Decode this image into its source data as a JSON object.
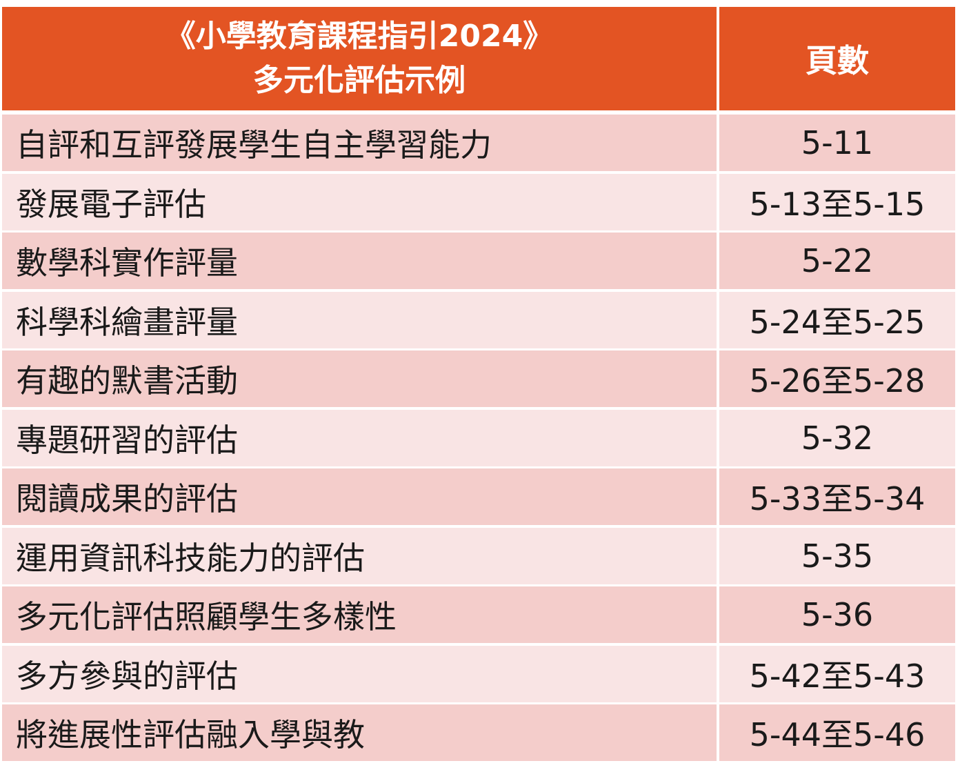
{
  "header": {
    "title_lines": [
      "《小學教育課程指引2024》",
      "多元化評估示例"
    ],
    "pages_heading": "頁數"
  },
  "table": {
    "rows": [
      [
        "自評和互評發展學生自主學習能力",
        "5-11"
      ],
      [
        "發展電子評估",
        "5-13至5-15"
      ],
      [
        "數學科實作評量",
        "5-22"
      ],
      [
        "科學科繪畫評量",
        "5-24至5-25"
      ],
      [
        "有趣的默書活動",
        "5-26至5-28"
      ],
      [
        "專題研習的評估",
        "5-32"
      ],
      [
        "閱讀成果的評估",
        "5-33至5-34"
      ],
      [
        "運用資訊科技能力的評估",
        "5-35"
      ],
      [
        "多元化評估照顧學生多樣性",
        "5-36"
      ],
      [
        "多方參與的評估",
        "5-42至5-43"
      ],
      [
        "將進展性評估融入學與教",
        "5-44至5-46"
      ]
    ]
  }
}
